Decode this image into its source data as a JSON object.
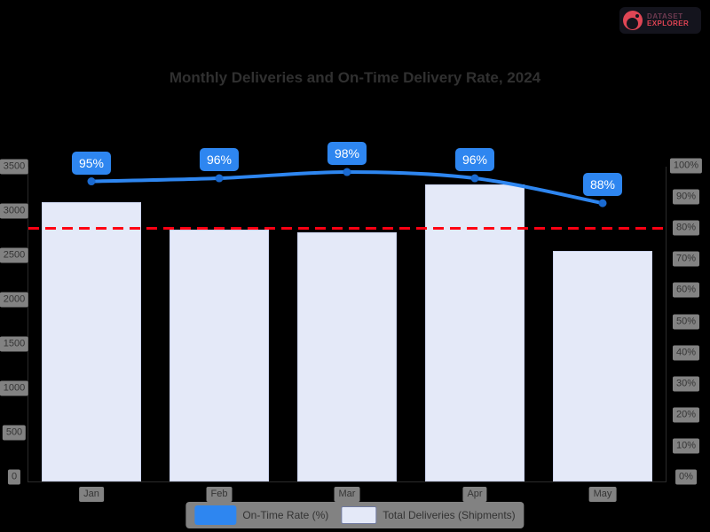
{
  "page": {
    "background_color": "#000000"
  },
  "logo": {
    "line1": "DATASET",
    "line2": "EXPLORER",
    "icon": "red-circle-logo-icon",
    "accent_color": "#de4353"
  },
  "chart_data": {
    "type": "bar+line combo",
    "title": "Monthly Deliveries and On-Time Delivery Rate, 2024",
    "categories": [
      "Jan",
      "Feb",
      "Mar",
      "Apr",
      "May"
    ],
    "series": [
      {
        "name": "Total Deliveries (Shipments)",
        "type": "bar",
        "yaxis": "left",
        "values": [
          3100,
          2790,
          2760,
          3300,
          2550
        ],
        "color": "#e4e9f8"
      },
      {
        "name": "On-Time Rate (%)",
        "type": "line",
        "yaxis": "right",
        "values": [
          95,
          96,
          98,
          96,
          88
        ],
        "point_labels": [
          "95%",
          "96%",
          "98%",
          "96%",
          "88%"
        ],
        "color": "#2e86f0",
        "marker_color": "#1a6ad1"
      }
    ],
    "reference_line": {
      "value": 2800,
      "yaxis": "left",
      "color": "#ff0013",
      "style": "dashed"
    },
    "left_axis": {
      "min": 0,
      "max": 3500,
      "step": 500,
      "ticks": [
        "3500",
        "3000",
        "2500",
        "2000",
        "1500",
        "1000",
        "500",
        "0"
      ]
    },
    "right_axis": {
      "min": 0,
      "max": 100,
      "step": 10,
      "ticks": [
        "100%",
        "90%",
        "80%",
        "70%",
        "60%",
        "50%",
        "40%",
        "30%",
        "20%",
        "10%",
        "0%"
      ]
    },
    "legend_position": "bottom",
    "grid": false
  }
}
